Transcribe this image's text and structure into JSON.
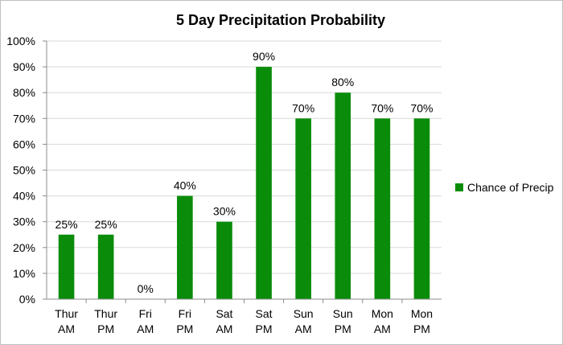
{
  "chart_data": {
    "type": "bar",
    "title": "5 Day Precipitation Probability",
    "categories": [
      [
        "Thur",
        "AM"
      ],
      [
        "Thur",
        "PM"
      ],
      [
        "Fri",
        "AM"
      ],
      [
        "Fri",
        "PM"
      ],
      [
        "Sat",
        "AM"
      ],
      [
        "Sat",
        "PM"
      ],
      [
        "Sun",
        "AM"
      ],
      [
        "Sun",
        "PM"
      ],
      [
        "Mon",
        "AM"
      ],
      [
        "Mon",
        "PM"
      ]
    ],
    "series": [
      {
        "name": "Chance of Precip",
        "values": [
          25,
          25,
          0,
          40,
          30,
          90,
          70,
          80,
          70,
          70
        ],
        "data_labels": [
          "25%",
          "25%",
          "0%",
          "40%",
          "30%",
          "90%",
          "70%",
          "80%",
          "70%",
          "70%"
        ],
        "color": "#0a8c0a"
      }
    ],
    "xlabel": "",
    "ylabel": "",
    "ylim": [
      0,
      100
    ],
    "y_ticks": [
      0,
      10,
      20,
      30,
      40,
      50,
      60,
      70,
      80,
      90,
      100
    ],
    "y_tick_labels": [
      "0%",
      "10%",
      "20%",
      "30%",
      "40%",
      "50%",
      "60%",
      "70%",
      "80%",
      "90%",
      "100%"
    ],
    "grid": true,
    "gridline_color": "#d9d9d9",
    "legend_position": "right"
  }
}
